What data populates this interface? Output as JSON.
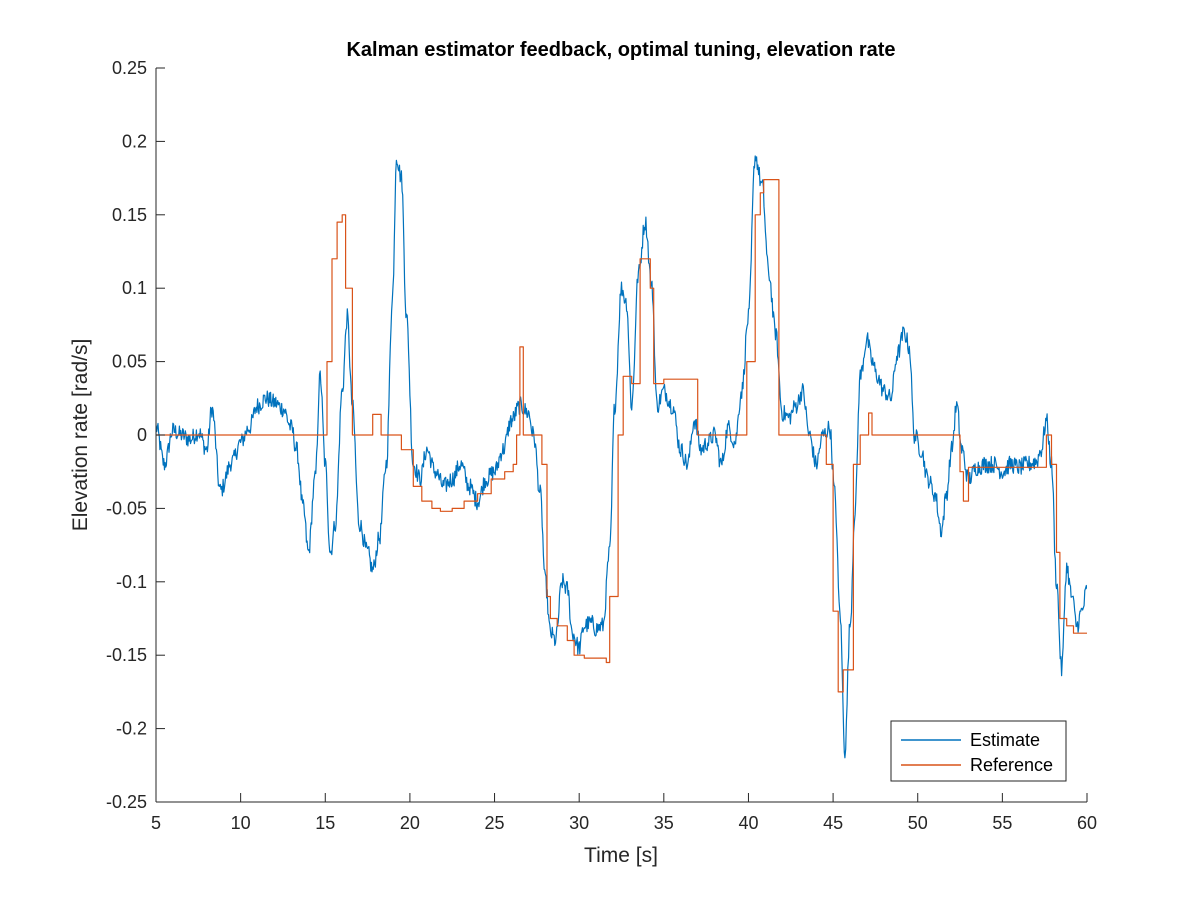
{
  "chart_data": {
    "type": "line",
    "title": "Kalman estimator feedback, optimal tuning, elevation rate",
    "xlabel": "Time [s]",
    "ylabel": "Elevation rate [rad/s]",
    "xlim": [
      5,
      60
    ],
    "ylim": [
      -0.25,
      0.25
    ],
    "xticks": [
      5,
      10,
      15,
      20,
      25,
      30,
      35,
      40,
      45,
      50,
      55,
      60
    ],
    "yticks": [
      -0.25,
      -0.2,
      -0.15,
      -0.1,
      -0.05,
      0,
      0.05,
      0.1,
      0.15,
      0.2,
      0.25
    ],
    "grid": false,
    "legend": {
      "placement": "bottom-right",
      "entries": [
        "Estimate",
        "Reference"
      ]
    },
    "series": [
      {
        "name": "Estimate",
        "color": "#0072BD",
        "noise": 0.006,
        "x": [
          5,
          5.5,
          6,
          6.5,
          7,
          7.5,
          8,
          8.3,
          8.8,
          9.5,
          10,
          10.5,
          11,
          11.5,
          12,
          12.5,
          13,
          13.3,
          13.7,
          14,
          14.4,
          14.7,
          15,
          15.3,
          15.6,
          16,
          16.3,
          16.6,
          17,
          17.5,
          17.8,
          18.2,
          18.6,
          19.0,
          19.2,
          19.5,
          19.8,
          20.2,
          20.6,
          21,
          21.5,
          22,
          22.5,
          23,
          23.5,
          24,
          24.5,
          25,
          25.5,
          26,
          26.5,
          27,
          27.3,
          27.7,
          28,
          28.3,
          28.6,
          29,
          29.3,
          29.6,
          30,
          30.3,
          30.7,
          31,
          31.4,
          31.8,
          32.1,
          32.5,
          32.8,
          33.1,
          33.5,
          33.9,
          34.3,
          34.6,
          35,
          35.5,
          36,
          36.4,
          36.8,
          37.2,
          37.6,
          38,
          38.4,
          38.8,
          39.2,
          39.6,
          40,
          40.4,
          40.8,
          41.2,
          41.6,
          42,
          42.4,
          42.8,
          43.2,
          43.6,
          44,
          44.4,
          44.8,
          45.1,
          45.4,
          45.7,
          46,
          46.3,
          46.6,
          47,
          47.3,
          47.6,
          48,
          48.4,
          48.8,
          49.2,
          49.5,
          49.8,
          50.2,
          50.6,
          51,
          51.4,
          51.7,
          52,
          52.3,
          52.6,
          53,
          53.5,
          54,
          54.5,
          55,
          55.5,
          56,
          56.5,
          57,
          57.3,
          57.6,
          57.9,
          58.2,
          58.5,
          58.8,
          59.1,
          59.4,
          59.7,
          60
        ],
        "y": [
          0.005,
          -0.02,
          0.003,
          0.0,
          -0.003,
          0.002,
          -0.01,
          0.018,
          -0.038,
          -0.018,
          -0.005,
          0.005,
          0.02,
          0.025,
          0.022,
          0.018,
          0.005,
          -0.01,
          -0.05,
          -0.08,
          -0.03,
          0.04,
          -0.02,
          -0.08,
          -0.06,
          0.03,
          0.08,
          0.02,
          -0.06,
          -0.08,
          -0.092,
          -0.07,
          -0.02,
          0.1,
          0.19,
          0.175,
          0.08,
          -0.02,
          -0.03,
          -0.01,
          -0.025,
          -0.035,
          -0.03,
          -0.02,
          -0.035,
          -0.045,
          -0.03,
          -0.025,
          -0.01,
          0.01,
          0.02,
          0.015,
          0.0,
          -0.04,
          -0.1,
          -0.135,
          -0.14,
          -0.1,
          -0.105,
          -0.135,
          -0.145,
          -0.13,
          -0.128,
          -0.132,
          -0.13,
          -0.08,
          0.02,
          0.1,
          0.09,
          0.02,
          0.11,
          0.145,
          0.1,
          0.02,
          0.03,
          0.02,
          -0.01,
          -0.02,
          0.01,
          -0.01,
          -0.005,
          0.0,
          -0.02,
          0.005,
          -0.005,
          0.03,
          0.08,
          0.19,
          0.17,
          0.11,
          0.07,
          0.015,
          0.012,
          0.02,
          0.03,
          0.0,
          -0.02,
          0.0,
          0.005,
          -0.04,
          -0.12,
          -0.215,
          -0.13,
          -0.05,
          0.04,
          0.065,
          0.05,
          0.04,
          0.03,
          0.025,
          0.055,
          0.07,
          0.06,
          0.0,
          -0.01,
          -0.03,
          -0.04,
          -0.065,
          -0.04,
          -0.01,
          0.02,
          -0.01,
          -0.03,
          -0.022,
          -0.02,
          -0.02,
          -0.025,
          -0.02,
          -0.022,
          -0.02,
          -0.018,
          -0.01,
          0.01,
          -0.02,
          -0.1,
          -0.16,
          -0.09,
          -0.11,
          -0.13,
          -0.12,
          -0.105
        ]
      },
      {
        "name": "Reference",
        "color": "#D95319",
        "noise": 0,
        "x": [
          5,
          14.9,
          15.1,
          15.4,
          15.7,
          16.0,
          16.2,
          16.6,
          17.7,
          17.8,
          18.2,
          18.3,
          19.2,
          19.5,
          20.2,
          20.7,
          21.3,
          21.8,
          22.5,
          23.2,
          24.0,
          24.8,
          25.6,
          26.1,
          26.3,
          26.5,
          26.7,
          27.0,
          27.8,
          28.1,
          28.3,
          28.7,
          29.3,
          29.7,
          30.3,
          31.2,
          31.6,
          31.8,
          32.3,
          32.6,
          33.1,
          33.6,
          34.2,
          34.4,
          35.0,
          36.5,
          37.0,
          39.5,
          39.9,
          40.4,
          40.7,
          40.9,
          41.6,
          41.8,
          44.2,
          44.6,
          45.0,
          45.3,
          45.6,
          46.2,
          46.6,
          47.1,
          47.3,
          52.3,
          52.5,
          52.7,
          53.0,
          57.4,
          57.6,
          57.9,
          58.2,
          58.4,
          58.8,
          59.2,
          60
        ],
        "y": [
          0.0,
          0.0,
          0.05,
          0.12,
          0.145,
          0.15,
          0.1,
          0.0,
          0.0,
          0.014,
          0.014,
          0.0,
          0.0,
          -0.01,
          -0.035,
          -0.045,
          -0.05,
          -0.052,
          -0.05,
          -0.045,
          -0.04,
          -0.03,
          -0.025,
          -0.02,
          0.0,
          0.06,
          0.0,
          0.0,
          -0.02,
          -0.11,
          -0.125,
          -0.13,
          -0.14,
          -0.15,
          -0.152,
          -0.152,
          -0.155,
          -0.11,
          0.0,
          0.04,
          0.035,
          0.12,
          0.1,
          0.035,
          0.038,
          0.038,
          0.0,
          0.0,
          0.05,
          0.15,
          0.165,
          0.174,
          0.174,
          0.0,
          0.0,
          -0.02,
          -0.12,
          -0.175,
          -0.16,
          -0.02,
          0.0,
          0.015,
          0.0,
          0.0,
          -0.025,
          -0.045,
          -0.022,
          -0.022,
          0.0,
          -0.02,
          -0.08,
          -0.125,
          -0.13,
          -0.135,
          -0.135
        ]
      }
    ]
  }
}
